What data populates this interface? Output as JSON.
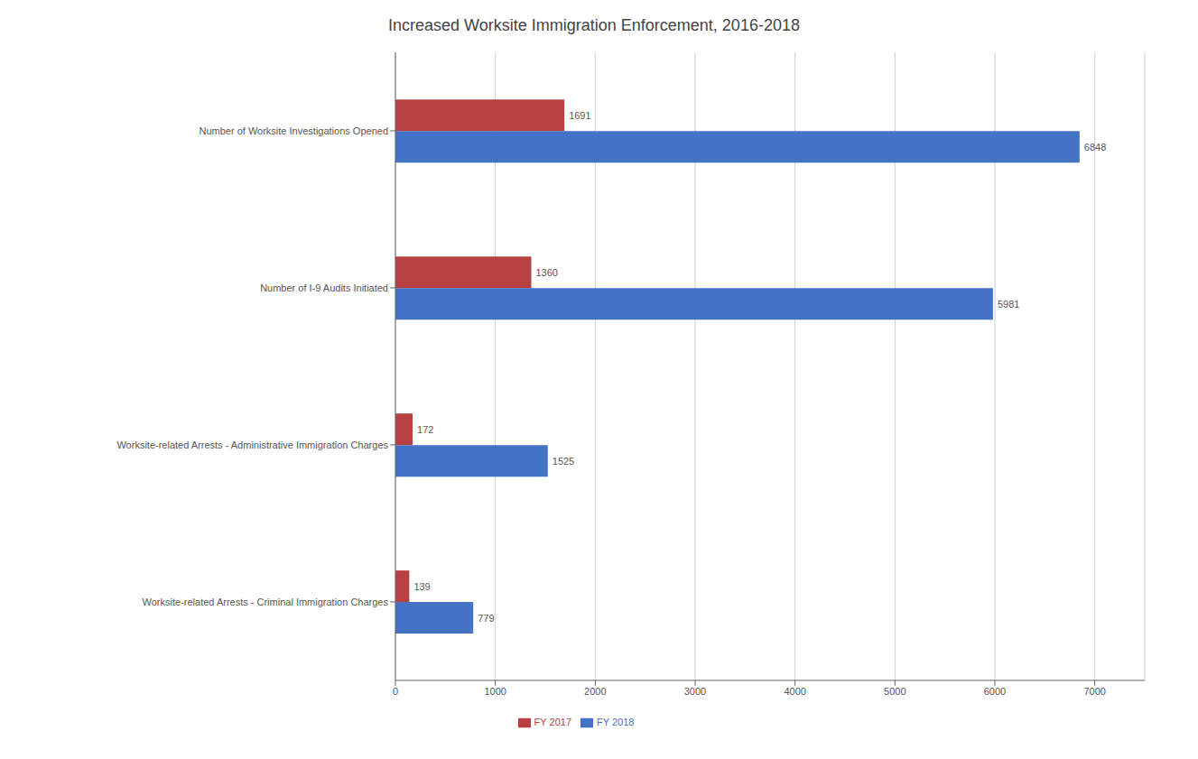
{
  "chart_data": {
    "type": "bar",
    "title": "Increased Worksite Immigration Enforcement, 2016-2018",
    "orientation": "horizontal",
    "categories": [
      "Number of Worksite Investigations Opened",
      "Number of I-9 Audits Initiated",
      "Worksite-related Arrests - Administrative Immigration Charges",
      "Worksite-related Arrests - Criminal Immigration Charges"
    ],
    "series": [
      {
        "name": "FY 2017",
        "color": "#b94040",
        "values": [
          1691,
          1360,
          172,
          139
        ]
      },
      {
        "name": "FY 2018",
        "color": "#4472c4",
        "values": [
          6848,
          5981,
          1525,
          779
        ]
      }
    ],
    "xlim": [
      0,
      7500
    ],
    "xticks": [
      0,
      1000,
      2000,
      3000,
      4000,
      5000,
      6000,
      7000
    ],
    "grid": true,
    "legend": "bottom",
    "data_labels": true
  }
}
